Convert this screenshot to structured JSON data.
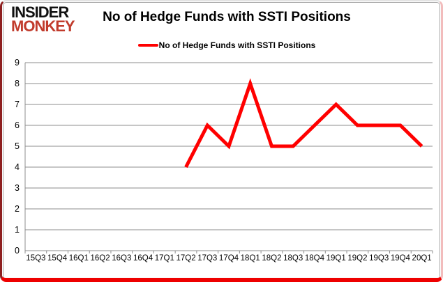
{
  "logo": {
    "line1": "INSIDER",
    "line2": "MONKEY"
  },
  "header": {
    "title": "No of Hedge Funds with SSTI Positions"
  },
  "legend": {
    "label": "No of Hedge Funds with SSTI Positions"
  },
  "colors": {
    "line": "#ff0000",
    "grid": "#8c8c8c",
    "axis": "#8c8c8c",
    "text": "#000000",
    "logo_red": "#c13b2c",
    "frame_red": "#ee0000"
  },
  "chart_data": {
    "type": "line",
    "title": "No of Hedge Funds with SSTI Positions",
    "categories": [
      "15Q3",
      "15Q4",
      "16Q1",
      "16Q2",
      "16Q3",
      "16Q4",
      "17Q1",
      "17Q2",
      "17Q3",
      "17Q4",
      "18Q1",
      "18Q2",
      "18Q3",
      "18Q4",
      "19Q1",
      "19Q2",
      "19Q3",
      "19Q4",
      "20Q1"
    ],
    "series": [
      {
        "name": "No of Hedge Funds with SSTI Positions",
        "values": [
          null,
          null,
          null,
          null,
          null,
          null,
          null,
          4,
          6,
          5,
          8,
          5,
          5,
          6,
          7,
          6,
          6,
          6,
          5
        ]
      }
    ],
    "xlabel": "",
    "ylabel": "",
    "ylim": [
      0,
      9
    ],
    "ytick_step": 1,
    "grid": true,
    "legend_position": "top-center",
    "marker": "none"
  }
}
